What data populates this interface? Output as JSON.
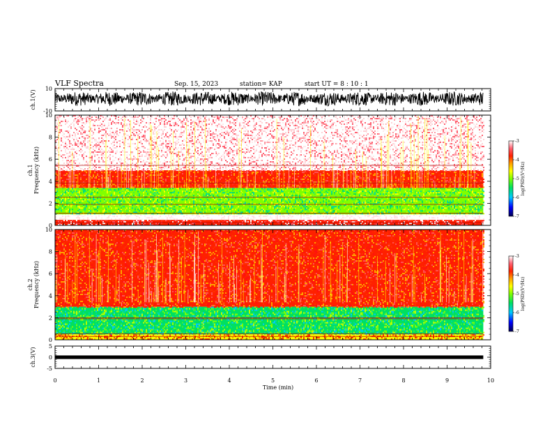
{
  "header": {
    "title": "VLF Spectra",
    "date": "Sep. 15, 2023",
    "station": "station= KAP",
    "start": "start  UT =   8  : 10 : 1"
  },
  "chart_data": [
    {
      "id": "ch1-waveform",
      "type": "line",
      "ylabel": "ch.1(V)",
      "ylim": [
        -10,
        10
      ],
      "yticks": [
        "10",
        "-10"
      ],
      "xlim": [
        0,
        10
      ],
      "data_end_min": 9.83,
      "level_v": 1.0,
      "noise_amplitude_v": 6.5
    },
    {
      "id": "ch1-spectrogram",
      "type": "heatmap",
      "ylabel": "ch.1\nFrequency (kHz)",
      "ylim": [
        0,
        10
      ],
      "yticks": [
        "0",
        "2",
        "4",
        "6",
        "8",
        "10"
      ],
      "xlim": [
        0,
        10
      ],
      "data_end_min": 9.83,
      "colorbar": {
        "label": "log(PSD)(V²/Hz)",
        "ticks": [
          "-3",
          "-4",
          "-5",
          "-6",
          "-7"
        ],
        "range": [
          -7,
          -3
        ]
      },
      "bands_khz": [
        {
          "from": 0,
          "to": 0.5,
          "level": "red-with-white-lines"
        },
        {
          "from": 0.5,
          "to": 1.0,
          "level": "white-gap"
        },
        {
          "from": 1.0,
          "to": 3.4,
          "level": "green-yellow"
        },
        {
          "from": 3.4,
          "to": 3.9,
          "level": "red-orange"
        },
        {
          "from": 3.9,
          "to": 5.0,
          "level": "red"
        },
        {
          "from": 5.0,
          "to": 10.0,
          "level": "pink-white"
        }
      ],
      "lines_khz": [
        0.25,
        1.1,
        1.9,
        2.55,
        3.85,
        5.45
      ]
    },
    {
      "id": "ch2-spectrogram",
      "type": "heatmap",
      "ylabel": "ch.2\nFrequency (kHz)",
      "ylim": [
        0,
        10
      ],
      "yticks": [
        "0",
        "2",
        "4",
        "6",
        "8",
        "10"
      ],
      "xlim": [
        0,
        10
      ],
      "data_end_min": 9.83,
      "colorbar": {
        "label": "log(PSD)(V²/Hz)",
        "ticks": [
          "-3",
          "-4",
          "-5",
          "-6",
          "-7"
        ],
        "range": [
          -7,
          -3
        ]
      },
      "bands_khz": [
        {
          "from": 0,
          "to": 0.5,
          "level": "yellow-red"
        },
        {
          "from": 0.5,
          "to": 3.0,
          "level": "green-cyan"
        },
        {
          "from": 3.0,
          "to": 10.0,
          "level": "red"
        }
      ],
      "lines_khz": [
        0.3,
        0.55,
        1.9,
        2.0
      ]
    },
    {
      "id": "ch3-waveform",
      "type": "line",
      "ylabel": "ch.3(V)",
      "ylim": [
        -5,
        5
      ],
      "yticks": [
        "5",
        "0",
        "-5"
      ],
      "xlim": [
        0,
        10
      ],
      "data_end_min": 9.83,
      "level_v": 0.0,
      "band_halfwidth_v": 0.8
    }
  ],
  "xaxis": {
    "label": "Time (min)",
    "ticks": [
      "0",
      "1",
      "2",
      "3",
      "4",
      "5",
      "6",
      "7",
      "8",
      "9",
      "10"
    ]
  },
  "colors": {
    "colormap": [
      "#000050",
      "#0000ff",
      "#00c8ff",
      "#00e060",
      "#80ff00",
      "#ffff00",
      "#ffa000",
      "#ff2000",
      "#ff6070",
      "#ffffff"
    ],
    "axis": "#000000"
  }
}
